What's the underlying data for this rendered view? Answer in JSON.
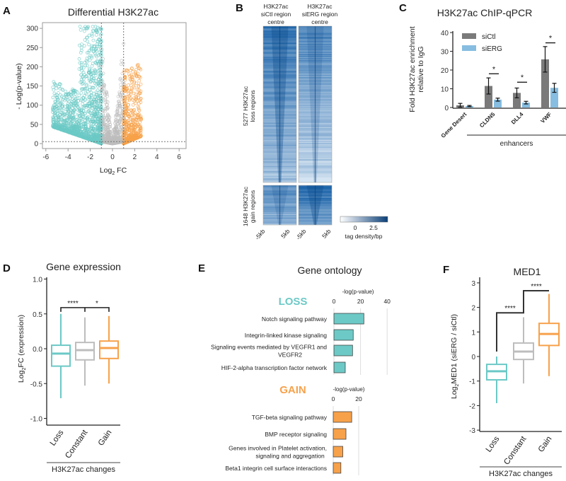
{
  "panels": {
    "a": "A",
    "b": "B",
    "c": "C",
    "d": "D",
    "e": "E",
    "f": "F"
  },
  "colors": {
    "loss": "#6cc9c6",
    "gain": "#f7a14a",
    "constant": "#bdbdbd",
    "siCtl": "#7a7a7a",
    "siERG": "#86bde0",
    "heat": "#1a62a8"
  },
  "chart_data": [
    {
      "id": "volcano",
      "type": "scatter",
      "title": "Differential H3K27ac",
      "xlabel": "Log",
      "xlabel_sub": "2",
      "xlabel_tail": " FC",
      "ylabel": "- Log(p-value)",
      "xlim": [
        -6.5,
        6.5
      ],
      "ylim": [
        -10,
        310
      ],
      "xticks": [
        -6,
        -4,
        -2,
        0,
        2,
        4,
        6
      ],
      "yticks": [
        0,
        50,
        100,
        150,
        200,
        250,
        300
      ],
      "thresholds": {
        "log2fc": [
          -1,
          1
        ],
        "pvalue_line": 5
      },
      "groups": [
        {
          "label": "loss",
          "color": "#6cc9c6"
        },
        {
          "label": "not significant",
          "color": "#bdbdbd"
        },
        {
          "label": "gain",
          "color": "#f7a14a"
        }
      ]
    },
    {
      "id": "heatmap",
      "type": "heatmap",
      "columns": [
        [
          "H3K27ac",
          "siCtl region",
          "centre"
        ],
        [
          "H3K27ac",
          "siERG region",
          "centre"
        ]
      ],
      "row_groups": [
        {
          "label": [
            "5277 H3K27ac",
            "loss regions"
          ],
          "count": 5277
        },
        {
          "label": [
            "1648 H3K27ac",
            "gain regions"
          ],
          "count": 1648
        }
      ],
      "xticks": [
        "-5kb",
        "5kb"
      ],
      "colorbar": {
        "ticks": [
          "0",
          "2.5"
        ],
        "label": "tag density/bp"
      }
    },
    {
      "id": "chip_qpcr",
      "type": "bar",
      "title": "H3K27ac ChIP-qPCR",
      "ylabel": [
        "Fold H3K27ac enrichment",
        "relative to IgG"
      ],
      "ylim": [
        0,
        40
      ],
      "yticks": [
        0,
        10,
        20,
        30,
        40
      ],
      "categories": [
        "Gene Desert",
        "CLDN5",
        "DLL4",
        "VWF"
      ],
      "group_label": "enhancers",
      "series": [
        {
          "name": "siCtl",
          "values": [
            1.2,
            11.5,
            7.8,
            25.7
          ],
          "errors": [
            1.0,
            4.3,
            2.6,
            6.8
          ]
        },
        {
          "name": "siERG",
          "values": [
            0.8,
            4.2,
            2.6,
            10.5
          ],
          "errors": [
            0.3,
            0.8,
            0.7,
            2.4
          ]
        }
      ],
      "significance": [
        "",
        "*",
        "*",
        "*"
      ],
      "legend": "top-left"
    },
    {
      "id": "gene_expression",
      "type": "box",
      "title": "Gene expression",
      "ylabel": "Log",
      "ylabel_sub": "2",
      "ylabel_tail": "FC (expression)",
      "ylim": [
        -1.05,
        1.05
      ],
      "yticks": [
        "1.0",
        "0.5",
        "0.0",
        "-0.5",
        "-1.0"
      ],
      "categories": [
        "Loss",
        "Constant",
        "Gain"
      ],
      "xlabel": "H3K27ac changes",
      "boxes": [
        {
          "min": -0.71,
          "q1": -0.25,
          "median": -0.07,
          "q3": 0.05,
          "max": 0.5
        },
        {
          "min": -0.53,
          "q1": -0.16,
          "median": -0.02,
          "q3": 0.09,
          "max": 0.45
        },
        {
          "min": -0.5,
          "q1": -0.14,
          "median": 0.01,
          "q3": 0.11,
          "max": 0.47
        }
      ],
      "significance": [
        {
          "pair": [
            "Loss",
            "Constant"
          ],
          "label": "****"
        },
        {
          "pair": [
            "Constant",
            "Gain"
          ],
          "label": "*"
        }
      ]
    },
    {
      "id": "gene_ontology",
      "type": "bar",
      "orientation": "horizontal",
      "title": "Gene ontology",
      "subcharts": [
        {
          "label": "LOSS",
          "xlabel": "-log(p-value)",
          "xticks": [
            0,
            20,
            40
          ],
          "xlim": [
            0,
            42
          ],
          "categories": [
            [
              "Notch signaling pathway"
            ],
            [
              "Integrin-linked kinase signaling"
            ],
            [
              "Signaling events mediated by VEGFR1 and",
              "VEGFR2"
            ],
            [
              "HIF-2-alpha transcription factor network"
            ]
          ],
          "values": [
            22.5,
            14.5,
            14,
            8.5
          ]
        },
        {
          "label": "GAIN",
          "xlabel": "-log(p-value)",
          "xticks": [
            0,
            20
          ],
          "xlim": [
            0,
            22
          ],
          "categories": [
            [
              "TGF-beta signaling pathway"
            ],
            [
              "BMP receptor signaling"
            ],
            [
              "Genes involved in Platelet activation,",
              "signaling and aggregation"
            ],
            [
              "Beta1 integrin cell surface interactions"
            ]
          ],
          "values": [
            14.5,
            10,
            7.5,
            6
          ]
        }
      ]
    },
    {
      "id": "med1",
      "type": "box",
      "title": "MED1",
      "ylabel": "Log",
      "ylabel_sub": "2",
      "ylabel_tail": "MED1 (siERG / siCtl)",
      "ylim": [
        -3.2,
        3.3
      ],
      "yticks": [
        3,
        2,
        1,
        0,
        -1,
        -2,
        -3
      ],
      "categories": [
        "Loss",
        "Constant",
        "Gain"
      ],
      "xlabel": "H3K27ac changes",
      "boxes": [
        {
          "min": -1.9,
          "q1": -0.95,
          "median": -0.6,
          "q3": -0.32,
          "max": 0.0
        },
        {
          "min": -1.1,
          "q1": -0.12,
          "median": 0.2,
          "q3": 0.55,
          "max": 1.6
        },
        {
          "min": -0.8,
          "q1": 0.45,
          "median": 0.92,
          "q3": 1.35,
          "max": 2.55
        }
      ],
      "significance": [
        {
          "pair": [
            "Loss",
            "Constant"
          ],
          "label": "****"
        },
        {
          "pair": [
            "Constant",
            "Gain"
          ],
          "label": "****"
        }
      ]
    }
  ]
}
